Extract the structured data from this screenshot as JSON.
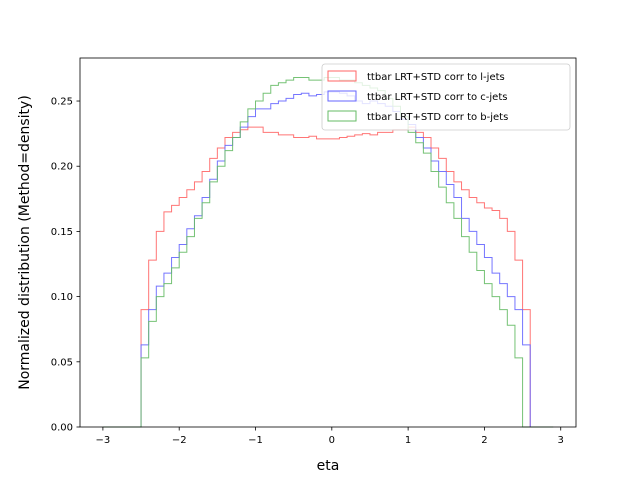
{
  "chart_data": {
    "type": "step",
    "xlabel": "eta",
    "ylabel": "Normalized distribution (Method=density)",
    "xlim": [
      -3.3,
      3.2
    ],
    "ylim": [
      0,
      0.283
    ],
    "xticks": [
      -3,
      -2,
      -1,
      0,
      1,
      2,
      3
    ],
    "xtick_labels": [
      "−3",
      "−2",
      "−1",
      "0",
      "1",
      "2",
      "3"
    ],
    "yticks": [
      0,
      0.05,
      0.1,
      0.15,
      0.2,
      0.25
    ],
    "ytick_labels": [
      "0.00",
      "0.05",
      "0.10",
      "0.15",
      "0.20",
      "0.25"
    ],
    "grid": false,
    "legend_position": "top-right",
    "bin_edges": [
      -3.0,
      -2.9,
      -2.8,
      -2.7,
      -2.6,
      -2.5,
      -2.4,
      -2.3,
      -2.2,
      -2.1,
      -2.0,
      -1.9,
      -1.8,
      -1.7,
      -1.6,
      -1.5,
      -1.4,
      -1.3,
      -1.2,
      -1.1,
      -1.0,
      -0.9,
      -0.8,
      -0.7,
      -0.6,
      -0.5,
      -0.4,
      -0.3,
      -0.2,
      -0.1,
      0.0,
      0.1,
      0.2,
      0.3,
      0.4,
      0.5,
      0.6,
      0.7,
      0.8,
      0.9,
      1.0,
      1.1,
      1.2,
      1.3,
      1.4,
      1.5,
      1.6,
      1.7,
      1.8,
      1.9,
      2.0,
      2.1,
      2.2,
      2.3,
      2.4,
      2.5,
      2.6,
      2.7,
      2.8,
      2.9
    ],
    "series": [
      {
        "name": "ttbar LRT+STD corr to l-jets",
        "color": "#ff6666",
        "values": [
          0,
          0,
          0,
          0,
          0,
          0.09,
          0.128,
          0.15,
          0.165,
          0.17,
          0.176,
          0.182,
          0.188,
          0.196,
          0.206,
          0.214,
          0.222,
          0.226,
          0.228,
          0.23,
          0.23,
          0.226,
          0.226,
          0.224,
          0.224,
          0.222,
          0.222,
          0.223,
          0.221,
          0.221,
          0.221,
          0.222,
          0.223,
          0.224,
          0.225,
          0.224,
          0.226,
          0.226,
          0.228,
          0.228,
          0.23,
          0.226,
          0.222,
          0.214,
          0.206,
          0.196,
          0.188,
          0.182,
          0.176,
          0.172,
          0.168,
          0.166,
          0.16,
          0.15,
          0.128,
          0.09,
          0,
          0,
          0
        ]
      },
      {
        "name": "ttbar LRT+STD corr to c-jets",
        "color": "#6666ff",
        "values": [
          0,
          0,
          0,
          0,
          0,
          0.063,
          0.09,
          0.108,
          0.118,
          0.13,
          0.14,
          0.152,
          0.162,
          0.176,
          0.19,
          0.204,
          0.216,
          0.222,
          0.23,
          0.238,
          0.244,
          0.244,
          0.248,
          0.25,
          0.252,
          0.255,
          0.256,
          0.254,
          0.255,
          0.257,
          0.257,
          0.256,
          0.254,
          0.25,
          0.248,
          0.25,
          0.248,
          0.246,
          0.242,
          0.236,
          0.232,
          0.222,
          0.214,
          0.204,
          0.196,
          0.186,
          0.176,
          0.16,
          0.15,
          0.14,
          0.13,
          0.118,
          0.11,
          0.1,
          0.09,
          0.063,
          0,
          0,
          0
        ]
      },
      {
        "name": "ttbar LRT+STD corr to b-jets",
        "color": "#66bb66",
        "values": [
          0,
          0,
          0,
          0,
          0,
          0.053,
          0.081,
          0.1,
          0.11,
          0.122,
          0.134,
          0.146,
          0.16,
          0.172,
          0.188,
          0.2,
          0.212,
          0.222,
          0.234,
          0.244,
          0.25,
          0.256,
          0.262,
          0.264,
          0.266,
          0.268,
          0.268,
          0.266,
          0.266,
          0.268,
          0.268,
          0.266,
          0.266,
          0.264,
          0.262,
          0.26,
          0.258,
          0.252,
          0.246,
          0.238,
          0.226,
          0.218,
          0.21,
          0.196,
          0.184,
          0.172,
          0.16,
          0.146,
          0.134,
          0.12,
          0.11,
          0.1,
          0.09,
          0.078,
          0.053,
          0,
          0,
          0,
          0
        ]
      }
    ]
  }
}
